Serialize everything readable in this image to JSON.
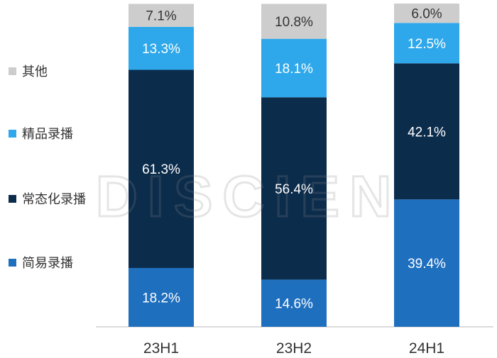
{
  "chart_data": {
    "type": "bar",
    "stacked": true,
    "categories": [
      "23H1",
      "23H2",
      "24H1"
    ],
    "series": [
      {
        "name": "简易录播",
        "color": "#1f6fbf",
        "values": [
          18.2,
          14.6,
          39.4
        ],
        "labels": [
          "18.2%",
          "14.6%",
          "39.4%"
        ]
      },
      {
        "name": "常态化录播",
        "color": "#0c2c4c",
        "values": [
          61.3,
          56.4,
          42.1
        ],
        "labels": [
          "61.3%",
          "56.4%",
          "42.1%"
        ]
      },
      {
        "name": "精品录播",
        "color": "#2ea8ea",
        "values": [
          13.3,
          18.1,
          12.5
        ],
        "labels": [
          "13.3%",
          "18.1%",
          "12.5%"
        ]
      },
      {
        "name": "其他",
        "color": "#cdcdcd",
        "values": [
          7.1,
          10.8,
          6.0
        ],
        "labels": [
          "7.1%",
          "10.8%",
          "6.0%"
        ]
      }
    ],
    "ylim": [
      0,
      100
    ],
    "legend_position": "left",
    "grid": false
  },
  "legend": [
    {
      "label": "其他",
      "color": "#cdcdcd"
    },
    {
      "label": "精品录播",
      "color": "#2ea8ea"
    },
    {
      "label": "常态化录播",
      "color": "#0c2c4c"
    },
    {
      "label": "简易录播",
      "color": "#1f6fbf"
    }
  ],
  "watermark": "DISCIEN"
}
